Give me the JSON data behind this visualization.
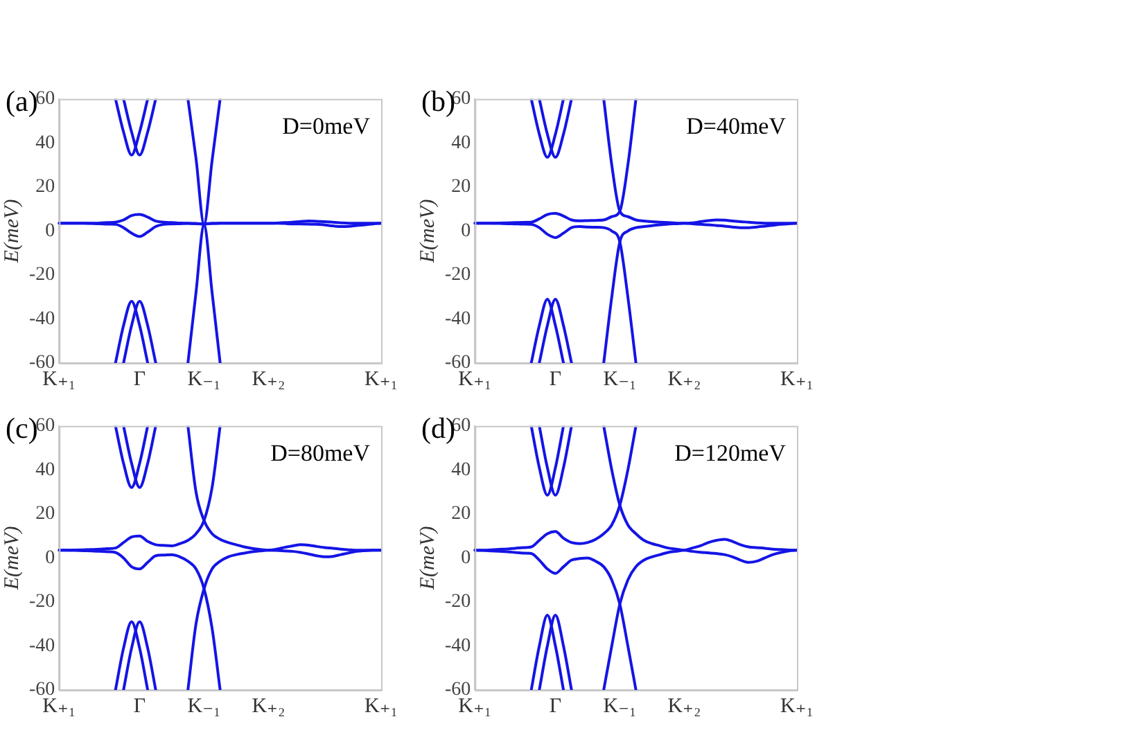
{
  "chart_data": [
    {
      "type": "line",
      "title": "(a)",
      "annotations": [
        "D=0meV"
      ],
      "ylabel": "E(meV)",
      "categories": [
        "K₊₁",
        null,
        null,
        null,
        null,
        null,
        null,
        null,
        null,
        null,
        "Γ",
        null,
        null,
        null,
        null,
        null,
        null,
        null,
        "K₋₁",
        null,
        null,
        null,
        null,
        null,
        null,
        null,
        "K₊₂",
        null,
        null,
        null,
        null,
        null,
        null,
        null,
        null,
        null,
        null,
        null,
        null,
        null,
        "K₊₁"
      ],
      "ylim": [
        -60,
        60
      ],
      "yticks": [
        -60,
        -40,
        -20,
        0,
        20,
        40,
        60
      ],
      "grid": false,
      "legend": false,
      "marker": "none",
      "line_style": "solid",
      "series": [
        {
          "color": "#1414e6",
          "values": [
            null,
            null,
            null,
            null,
            null,
            null,
            null,
            60,
            45,
            34.5,
            45,
            60,
            null,
            null,
            null,
            null,
            null,
            null,
            null,
            null,
            null,
            null,
            null,
            null,
            null,
            null,
            null,
            null,
            null,
            null,
            null,
            null,
            null,
            null,
            null,
            null,
            null,
            null,
            null,
            null,
            null
          ]
        },
        {
          "color": "#1414e6",
          "values": [
            null,
            null,
            null,
            null,
            null,
            null,
            null,
            null,
            60,
            45,
            34.5,
            45,
            60,
            null,
            null,
            null,
            null,
            null,
            null,
            null,
            null,
            null,
            null,
            null,
            null,
            null,
            null,
            null,
            null,
            null,
            null,
            null,
            null,
            null,
            null,
            null,
            null,
            null,
            null,
            null,
            null
          ]
        },
        {
          "color": "#1414e6",
          "values": [
            null,
            null,
            null,
            null,
            null,
            null,
            null,
            -60,
            -43,
            -32,
            -43,
            -60,
            null,
            null,
            null,
            null,
            null,
            null,
            null,
            null,
            null,
            null,
            null,
            null,
            null,
            null,
            null,
            null,
            null,
            null,
            null,
            null,
            null,
            null,
            null,
            null,
            null,
            null,
            null,
            null,
            null
          ]
        },
        {
          "color": "#1414e6",
          "values": [
            null,
            null,
            null,
            null,
            null,
            null,
            null,
            null,
            -60,
            -43,
            -32,
            -43,
            -60,
            null,
            null,
            null,
            null,
            null,
            null,
            null,
            null,
            null,
            null,
            null,
            null,
            null,
            null,
            null,
            null,
            null,
            null,
            null,
            null,
            null,
            null,
            null,
            null,
            null,
            null,
            null,
            null
          ]
        },
        {
          "color": "#1414e6",
          "values": [
            3.5,
            3.5,
            3.5,
            3.5,
            3.5,
            3.6,
            3.8,
            4,
            5,
            7,
            7.5,
            6.3,
            4.5,
            4,
            3.8,
            3.6,
            3.5,
            3.4,
            3.2,
            32,
            60,
            null,
            null,
            null,
            null,
            null,
            null,
            null,
            null,
            null,
            null,
            null,
            null,
            null,
            null,
            null,
            null,
            null,
            null,
            null,
            null
          ]
        },
        {
          "color": "#1414e6",
          "values": [
            null,
            null,
            null,
            null,
            null,
            null,
            null,
            null,
            null,
            null,
            null,
            null,
            null,
            null,
            null,
            null,
            60,
            33,
            3.2,
            3.4,
            3.5,
            3.5,
            3.5,
            3.5,
            3.5,
            3.5,
            3.5,
            3.6,
            3.8,
            4,
            4.3,
            4.5,
            4.4,
            4.2,
            4,
            3.7,
            3.5,
            3.5,
            3.5,
            3.5,
            3.5
          ]
        },
        {
          "color": "#1414e6",
          "values": [
            3.5,
            3.5,
            3.5,
            3.5,
            3.4,
            3.3,
            3.1,
            3,
            1.5,
            -1,
            -2.5,
            -0.5,
            2,
            3,
            3.2,
            3.3,
            3.4,
            3.3,
            3,
            -28,
            -60,
            null,
            null,
            null,
            null,
            null,
            null,
            null,
            null,
            null,
            null,
            null,
            null,
            null,
            null,
            null,
            null,
            null,
            null,
            null,
            null
          ]
        },
        {
          "color": "#1414e6",
          "values": [
            null,
            null,
            null,
            null,
            null,
            null,
            null,
            null,
            null,
            null,
            null,
            null,
            null,
            null,
            null,
            null,
            -60,
            -28,
            3,
            3.4,
            3.5,
            3.5,
            3.5,
            3.5,
            3.5,
            3.5,
            3.5,
            3.5,
            3.4,
            3.2,
            3.2,
            3.1,
            3,
            2.7,
            2.3,
            2,
            2.1,
            2.5,
            2.8,
            3.2,
            3.5
          ]
        }
      ]
    },
    {
      "type": "line",
      "title": "(b)",
      "annotations": [
        "D=40meV"
      ],
      "ylabel": "E(meV)",
      "categories": [
        "K₊₁",
        null,
        null,
        null,
        null,
        null,
        null,
        null,
        null,
        null,
        "Γ",
        null,
        null,
        null,
        null,
        null,
        null,
        null,
        "K₋₁",
        null,
        null,
        null,
        null,
        null,
        null,
        null,
        "K₊₂",
        null,
        null,
        null,
        null,
        null,
        null,
        null,
        null,
        null,
        null,
        null,
        null,
        null,
        "K₊₁"
      ],
      "ylim": [
        -60,
        60
      ],
      "yticks": [
        -60,
        -40,
        -20,
        0,
        20,
        40,
        60
      ],
      "grid": false,
      "legend": false,
      "marker": "none",
      "line_style": "solid",
      "series": [
        {
          "color": "#1414e6",
          "values": [
            null,
            null,
            null,
            null,
            null,
            null,
            null,
            60,
            44,
            33.5,
            44,
            60,
            null,
            null,
            null,
            null,
            null,
            null,
            null,
            null,
            null,
            null,
            null,
            null,
            null,
            null,
            null,
            null,
            null,
            null,
            null,
            null,
            null,
            null,
            null,
            null,
            null,
            null,
            null,
            null,
            null
          ]
        },
        {
          "color": "#1414e6",
          "values": [
            null,
            null,
            null,
            null,
            null,
            null,
            null,
            null,
            60,
            44,
            33.5,
            44,
            60,
            null,
            null,
            null,
            null,
            null,
            null,
            null,
            null,
            null,
            null,
            null,
            null,
            null,
            null,
            null,
            null,
            null,
            null,
            null,
            null,
            null,
            null,
            null,
            null,
            null,
            null,
            null,
            null
          ]
        },
        {
          "color": "#1414e6",
          "values": [
            null,
            null,
            null,
            null,
            null,
            null,
            null,
            -60,
            -43,
            -31,
            -43,
            -60,
            null,
            null,
            null,
            null,
            null,
            null,
            null,
            null,
            null,
            null,
            null,
            null,
            null,
            null,
            null,
            null,
            null,
            null,
            null,
            null,
            null,
            null,
            null,
            null,
            null,
            null,
            null,
            null,
            null
          ]
        },
        {
          "color": "#1414e6",
          "values": [
            null,
            null,
            null,
            null,
            null,
            null,
            null,
            null,
            -60,
            -43,
            -31,
            -43,
            -60,
            null,
            null,
            null,
            null,
            null,
            null,
            null,
            null,
            null,
            null,
            null,
            null,
            null,
            null,
            null,
            null,
            null,
            null,
            null,
            null,
            null,
            null,
            null,
            null,
            null,
            null,
            null,
            null
          ]
        },
        {
          "color": "#1414e6",
          "values": [
            3.5,
            3.5,
            3.5,
            3.6,
            3.7,
            3.8,
            3.9,
            4,
            5.5,
            7.5,
            8,
            6.8,
            5,
            4.6,
            4.7,
            4.8,
            5,
            6.5,
            9,
            30,
            60,
            null,
            null,
            null,
            null,
            null,
            null,
            null,
            null,
            null,
            null,
            null,
            null,
            null,
            null,
            null,
            null,
            null,
            null,
            null,
            null
          ]
        },
        {
          "color": "#1414e6",
          "values": [
            null,
            null,
            null,
            null,
            null,
            null,
            null,
            null,
            null,
            null,
            null,
            null,
            null,
            null,
            null,
            null,
            60,
            30,
            9,
            6.5,
            5,
            4.5,
            4.2,
            4,
            3.8,
            3.6,
            3.5,
            3.7,
            4.2,
            4.7,
            5,
            4.9,
            4.5,
            4.2,
            4,
            3.7,
            3.5,
            3.5,
            3.5,
            3.5,
            3.5
          ]
        },
        {
          "color": "#1414e6",
          "values": [
            3.5,
            3.5,
            3.5,
            3.4,
            3.3,
            3.2,
            3.1,
            3,
            1.5,
            -1.5,
            -3,
            -1,
            1.5,
            2,
            1.8,
            1.7,
            1.5,
            0,
            -5,
            -30,
            -60,
            null,
            null,
            null,
            null,
            null,
            null,
            null,
            null,
            null,
            null,
            null,
            null,
            null,
            null,
            null,
            null,
            null,
            null,
            null,
            null
          ]
        },
        {
          "color": "#1414e6",
          "values": [
            null,
            null,
            null,
            null,
            null,
            null,
            null,
            null,
            null,
            null,
            null,
            null,
            null,
            null,
            null,
            null,
            -60,
            -30,
            -5,
            0,
            1.5,
            2,
            2.4,
            2.8,
            3.1,
            3.3,
            3.5,
            3.3,
            3,
            2.8,
            2.5,
            2.2,
            1.8,
            1.5,
            1.5,
            1.8,
            2.2,
            2.6,
            3,
            3.3,
            3.5
          ]
        }
      ]
    },
    {
      "type": "line",
      "title": "(c)",
      "annotations": [
        "D=80meV"
      ],
      "ylabel": "E(meV)",
      "categories": [
        "K₊₁",
        null,
        null,
        null,
        null,
        null,
        null,
        null,
        null,
        null,
        "Γ",
        null,
        null,
        null,
        null,
        null,
        null,
        null,
        "K₋₁",
        null,
        null,
        null,
        null,
        null,
        null,
        null,
        "K₊₂",
        null,
        null,
        null,
        null,
        null,
        null,
        null,
        null,
        null,
        null,
        null,
        null,
        null,
        "K₊₁"
      ],
      "ylim": [
        -60,
        60
      ],
      "yticks": [
        -60,
        -40,
        -20,
        0,
        20,
        40,
        60
      ],
      "grid": false,
      "legend": false,
      "marker": "none",
      "line_style": "solid",
      "series": [
        {
          "color": "#1414e6",
          "values": [
            null,
            null,
            null,
            null,
            null,
            null,
            null,
            60,
            43,
            32,
            43,
            60,
            null,
            null,
            null,
            null,
            null,
            null,
            null,
            null,
            null,
            null,
            null,
            null,
            null,
            null,
            null,
            null,
            null,
            null,
            null,
            null,
            null,
            null,
            null,
            null,
            null,
            null,
            null,
            null,
            null
          ]
        },
        {
          "color": "#1414e6",
          "values": [
            null,
            null,
            null,
            null,
            null,
            null,
            null,
            null,
            60,
            43,
            32,
            43,
            60,
            null,
            null,
            null,
            null,
            null,
            null,
            null,
            null,
            null,
            null,
            null,
            null,
            null,
            null,
            null,
            null,
            null,
            null,
            null,
            null,
            null,
            null,
            null,
            null,
            null,
            null,
            null,
            null
          ]
        },
        {
          "color": "#1414e6",
          "values": [
            null,
            null,
            null,
            null,
            null,
            null,
            null,
            -60,
            -41,
            -29,
            -41,
            -60,
            null,
            null,
            null,
            null,
            null,
            null,
            null,
            null,
            null,
            null,
            null,
            null,
            null,
            null,
            null,
            null,
            null,
            null,
            null,
            null,
            null,
            null,
            null,
            null,
            null,
            null,
            null,
            null,
            null
          ]
        },
        {
          "color": "#1414e6",
          "values": [
            null,
            null,
            null,
            null,
            null,
            null,
            null,
            null,
            -60,
            -41,
            -29,
            -41,
            -60,
            null,
            null,
            null,
            null,
            null,
            null,
            null,
            null,
            null,
            null,
            null,
            null,
            null,
            null,
            null,
            null,
            null,
            null,
            null,
            null,
            null,
            null,
            null,
            null,
            null,
            null,
            null,
            null
          ]
        },
        {
          "color": "#1414e6",
          "values": [
            3.5,
            3.5,
            3.6,
            3.7,
            3.8,
            4,
            4.2,
            4.5,
            7,
            9.5,
            10,
            7.5,
            6,
            5.7,
            5.5,
            6.5,
            8,
            11,
            17,
            32,
            60,
            null,
            null,
            null,
            null,
            null,
            null,
            null,
            null,
            null,
            null,
            null,
            null,
            null,
            null,
            null,
            null,
            null,
            null,
            null,
            null
          ]
        },
        {
          "color": "#1414e6",
          "values": [
            null,
            null,
            null,
            null,
            null,
            null,
            null,
            null,
            null,
            null,
            null,
            null,
            null,
            null,
            null,
            null,
            60,
            30,
            17,
            11,
            8.5,
            7,
            6,
            5,
            4.3,
            3.8,
            3.5,
            4,
            4.8,
            5.5,
            6,
            5.8,
            5.2,
            4.7,
            4.4,
            4,
            3.7,
            3.5,
            3.5,
            3.5,
            3.5
          ]
        },
        {
          "color": "#1414e6",
          "values": [
            3.5,
            3.5,
            3.4,
            3.3,
            3.2,
            3,
            2.8,
            2.5,
            0,
            -4,
            -5,
            -2,
            1,
            1.3,
            1.5,
            0.5,
            -1.5,
            -5,
            -14,
            -32,
            -60,
            null,
            null,
            null,
            null,
            null,
            null,
            null,
            null,
            null,
            null,
            null,
            null,
            null,
            null,
            null,
            null,
            null,
            null,
            null,
            null
          ]
        },
        {
          "color": "#1414e6",
          "values": [
            null,
            null,
            null,
            null,
            null,
            null,
            null,
            null,
            null,
            null,
            null,
            null,
            null,
            null,
            null,
            null,
            -60,
            -30,
            -14,
            -5,
            -1.5,
            0.5,
            1.5,
            2.2,
            2.8,
            3.2,
            3.5,
            3.4,
            3.2,
            3,
            2.5,
            1.8,
            1,
            0.5,
            0.7,
            1.5,
            2.3,
            3,
            3.3,
            3.5,
            3.5
          ]
        }
      ]
    },
    {
      "type": "line",
      "title": "(d)",
      "annotations": [
        "D=120meV"
      ],
      "ylabel": "E(meV)",
      "categories": [
        "K₊₁",
        null,
        null,
        null,
        null,
        null,
        null,
        null,
        null,
        null,
        "Γ",
        null,
        null,
        null,
        null,
        null,
        null,
        null,
        "K₋₁",
        null,
        null,
        null,
        null,
        null,
        null,
        null,
        "K₊₂",
        null,
        null,
        null,
        null,
        null,
        null,
        null,
        null,
        null,
        null,
        null,
        null,
        null,
        "K₊₁"
      ],
      "ylim": [
        -60,
        60
      ],
      "yticks": [
        -60,
        -40,
        -20,
        0,
        20,
        40,
        60
      ],
      "grid": false,
      "legend": false,
      "marker": "none",
      "line_style": "solid",
      "series": [
        {
          "color": "#1414e6",
          "values": [
            null,
            null,
            null,
            null,
            null,
            null,
            null,
            60,
            41,
            28.5,
            41,
            60,
            null,
            null,
            null,
            null,
            null,
            null,
            null,
            null,
            null,
            null,
            null,
            null,
            null,
            null,
            null,
            null,
            null,
            null,
            null,
            null,
            null,
            null,
            null,
            null,
            null,
            null,
            null,
            null,
            null
          ]
        },
        {
          "color": "#1414e6",
          "values": [
            null,
            null,
            null,
            null,
            null,
            null,
            null,
            null,
            60,
            41,
            28.5,
            41,
            60,
            null,
            null,
            null,
            null,
            null,
            null,
            null,
            null,
            null,
            null,
            null,
            null,
            null,
            null,
            null,
            null,
            null,
            null,
            null,
            null,
            null,
            null,
            null,
            null,
            null,
            null,
            null,
            null
          ]
        },
        {
          "color": "#1414e6",
          "values": [
            null,
            null,
            null,
            null,
            null,
            null,
            null,
            -60,
            -40,
            -26,
            -40,
            -60,
            null,
            null,
            null,
            null,
            null,
            null,
            null,
            null,
            null,
            null,
            null,
            null,
            null,
            null,
            null,
            null,
            null,
            null,
            null,
            null,
            null,
            null,
            null,
            null,
            null,
            null,
            null,
            null,
            null
          ]
        },
        {
          "color": "#1414e6",
          "values": [
            null,
            null,
            null,
            null,
            null,
            null,
            null,
            null,
            -60,
            -40,
            -26,
            -40,
            -60,
            null,
            null,
            null,
            null,
            null,
            null,
            null,
            null,
            null,
            null,
            null,
            null,
            null,
            null,
            null,
            null,
            null,
            null,
            null,
            null,
            null,
            null,
            null,
            null,
            null,
            null,
            null,
            null
          ]
        },
        {
          "color": "#1414e6",
          "values": [
            3.5,
            3.5,
            3.7,
            3.9,
            4.1,
            4.4,
            4.7,
            5,
            8,
            11,
            12,
            9,
            7,
            6.5,
            7,
            8.5,
            11,
            15,
            24,
            40,
            60,
            null,
            null,
            null,
            null,
            null,
            null,
            null,
            null,
            null,
            null,
            null,
            null,
            null,
            null,
            null,
            null,
            null,
            null,
            null,
            null
          ]
        },
        {
          "color": "#1414e6",
          "values": [
            null,
            null,
            null,
            null,
            null,
            null,
            null,
            null,
            null,
            null,
            null,
            null,
            null,
            null,
            null,
            null,
            60,
            40,
            24,
            15,
            11,
            8,
            6.5,
            5.5,
            4.5,
            4,
            3.5,
            4.5,
            5.5,
            7,
            8,
            8.5,
            7.5,
            6,
            5,
            4.7,
            4.4,
            4,
            3.8,
            3.6,
            3.5
          ]
        },
        {
          "color": "#1414e6",
          "values": [
            3.5,
            3.4,
            3.2,
            3,
            2.8,
            2.5,
            2.2,
            2,
            -1,
            -5,
            -7,
            -4,
            -1,
            -0.3,
            0,
            -1.5,
            -4,
            -10,
            -21,
            -40,
            -60,
            null,
            null,
            null,
            null,
            null,
            null,
            null,
            null,
            null,
            null,
            null,
            null,
            null,
            null,
            null,
            null,
            null,
            null,
            null,
            null
          ]
        },
        {
          "color": "#1414e6",
          "values": [
            null,
            null,
            null,
            null,
            null,
            null,
            null,
            null,
            null,
            null,
            null,
            null,
            null,
            null,
            null,
            null,
            -60,
            -40,
            -21,
            -10,
            -4,
            -1,
            0.5,
            1.5,
            2.5,
            3,
            3.5,
            3,
            2.6,
            2.3,
            2,
            1.5,
            0.5,
            -1,
            -2,
            -1.5,
            0,
            1.5,
            2.5,
            3.2,
            3.5
          ]
        }
      ]
    }
  ]
}
